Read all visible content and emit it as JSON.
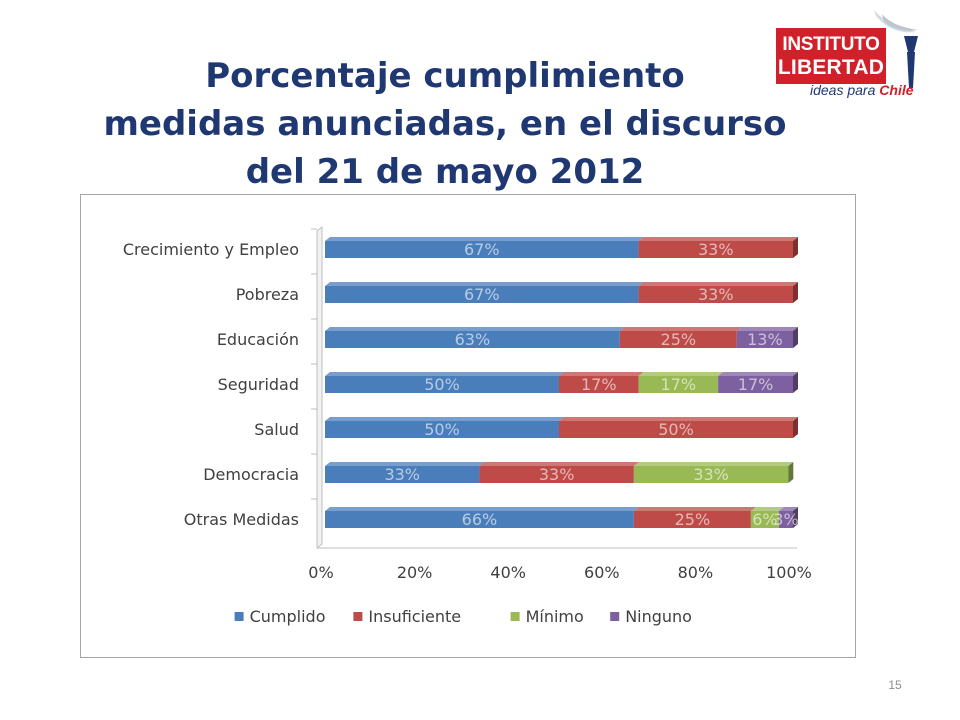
{
  "slide": {
    "title_lines": [
      "Porcentaje cumplimiento",
      "medidas anunciadas, en el discurso",
      "del 21 de mayo 2012"
    ],
    "page_number": "15"
  },
  "logo": {
    "line1": "INSTITUTO",
    "line2": "LIBERTAD",
    "tagline_prefix": "ideas para ",
    "tagline_accent": "Chile",
    "colors": {
      "red": "#d0212b",
      "navy": "#1f3872"
    }
  },
  "chart_data": {
    "type": "bar",
    "orientation": "horizontal",
    "stacked": "percent",
    "title": "",
    "xlabel": "",
    "ylabel": "",
    "xlim": [
      0,
      100
    ],
    "x_ticks": [
      "0%",
      "20%",
      "40%",
      "60%",
      "80%",
      "100%"
    ],
    "categories": [
      "Crecimiento y Empleo",
      "Pobreza",
      "Educación",
      "Seguridad",
      "Salud",
      "Democracia",
      "Otras Medidas"
    ],
    "series": [
      {
        "name": "Cumplido",
        "color": "#4a7ebb",
        "values": [
          67,
          67,
          63,
          50,
          50,
          33,
          66
        ],
        "labels": [
          "67%",
          "67%",
          "63%",
          "50%",
          "50%",
          "33%",
          "66%"
        ]
      },
      {
        "name": "Insuficiente",
        "color": "#be4b48",
        "values": [
          33,
          33,
          25,
          17,
          50,
          33,
          25
        ],
        "labels": [
          "33%",
          "33%",
          "25%",
          "17%",
          "50%",
          "33%",
          "25%"
        ]
      },
      {
        "name": "Mínimo",
        "color": "#98b954",
        "values": [
          0,
          0,
          0,
          17,
          0,
          33,
          6
        ],
        "labels": [
          "",
          "",
          "",
          "17%",
          "",
          "33%",
          "6%"
        ]
      },
      {
        "name": "Ninguno",
        "color": "#7d60a0",
        "values": [
          0,
          0,
          13,
          17,
          0,
          0,
          3
        ],
        "labels": [
          "",
          "",
          "13%",
          "17%",
          "",
          "",
          "3%"
        ]
      }
    ],
    "legend_position": "bottom",
    "grid": false,
    "three_d": true
  }
}
